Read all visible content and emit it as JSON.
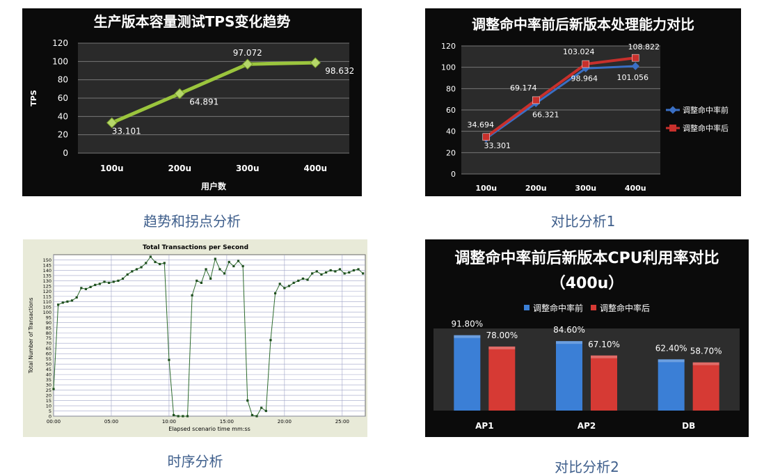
{
  "captions": {
    "c1": "趋势和拐点分析",
    "c2": "对比分析1",
    "c3": "时序分析",
    "c4": "对比分析2"
  },
  "chart_data": [
    {
      "type": "line",
      "title": "生产版本容量测试TPS变化趋势",
      "xlabel": "用户数",
      "ylabel": "TPS",
      "categories": [
        "100u",
        "200u",
        "300u",
        "400u"
      ],
      "series": [
        {
          "values": [
            33.101,
            64.891,
            97.072,
            98.632
          ]
        }
      ],
      "data_labels": [
        "33.101",
        "64.891",
        "97.072",
        "98.632"
      ],
      "ylim": [
        0,
        120
      ],
      "yticks": [
        "0",
        "20",
        "40",
        "60",
        "80",
        "100",
        "120"
      ],
      "grid": true,
      "colors": {
        "line": "#9bc53d",
        "background": "#0b0b0b"
      }
    },
    {
      "type": "line",
      "title": "调整命中率前后新版本处理能力对比",
      "categories": [
        "100u",
        "200u",
        "300u",
        "400u"
      ],
      "series": [
        {
          "name": "调整命中率前",
          "values": [
            33.301,
            66.321,
            98.964,
            101.056
          ],
          "labels": [
            "33.301",
            "66.321",
            "98.964",
            "101.056"
          ],
          "color": "#3a6fc4"
        },
        {
          "name": "调整命中率后",
          "values": [
            34.694,
            69.174,
            103.024,
            108.822
          ],
          "labels": [
            "34.694",
            "69.174",
            "103.024",
            "108.822"
          ],
          "color": "#c8302c"
        }
      ],
      "ylim": [
        0,
        120
      ],
      "yticks": [
        "0",
        "20",
        "40",
        "60",
        "80",
        "100",
        "120"
      ],
      "grid": true,
      "legend": "right"
    },
    {
      "type": "line",
      "title": "Total Transactions per Second",
      "xlabel": "Elapsed scenario time mm:ss",
      "ylabel": "Total Number of Transactions",
      "xticks": [
        "00:00",
        "05:00",
        "10:00",
        "15:00",
        "20:00",
        "25:00"
      ],
      "xtick_values": [
        0,
        5,
        10,
        15,
        20,
        25
      ],
      "xlim": [
        0,
        27
      ],
      "ylim": [
        0,
        155
      ],
      "yticks": [
        "0",
        "5",
        "10",
        "15",
        "20",
        "25",
        "30",
        "35",
        "40",
        "45",
        "50",
        "55",
        "60",
        "65",
        "70",
        "75",
        "80",
        "85",
        "90",
        "95",
        "100",
        "105",
        "110",
        "115",
        "120",
        "125",
        "130",
        "135",
        "140",
        "145",
        "150"
      ],
      "series": [
        {
          "x": [
            0,
            0.4,
            0.8,
            1.2,
            1.6,
            2.0,
            2.4,
            2.8,
            3.2,
            3.6,
            4.0,
            4.4,
            4.8,
            5.2,
            5.6,
            6.0,
            6.4,
            6.8,
            7.2,
            7.6,
            8.0,
            8.4,
            8.8,
            9.2,
            9.6,
            10.0,
            10.4,
            10.8,
            11.2,
            11.6,
            12.0,
            12.4,
            12.8,
            13.2,
            13.6,
            14.0,
            14.4,
            14.8,
            15.2,
            15.6,
            16.0,
            16.4,
            16.8,
            17.2,
            17.6,
            18.0,
            18.4,
            18.8,
            19.2,
            19.6,
            20.0,
            20.4,
            20.8,
            21.2,
            21.6,
            22.0,
            22.4,
            22.8,
            23.2,
            23.6,
            24.0,
            24.4,
            24.8,
            25.2,
            25.6,
            26.0,
            26.4,
            26.8
          ],
          "values": [
            26,
            107,
            109,
            110,
            111,
            114,
            123,
            122,
            124,
            126,
            127,
            129,
            128,
            129,
            130,
            132,
            136,
            139,
            141,
            143,
            147,
            153,
            148,
            146,
            147,
            54,
            1,
            0,
            0,
            0,
            116,
            130,
            128,
            141,
            132,
            151,
            141,
            137,
            148,
            144,
            149,
            144,
            15,
            1,
            0,
            8,
            5,
            73,
            118,
            127,
            123,
            125,
            128,
            130,
            132,
            131,
            137,
            139,
            136,
            138,
            140,
            139,
            141,
            137,
            138,
            140,
            141,
            137
          ],
          "color": "#2e6b2e"
        }
      ],
      "grid": true
    },
    {
      "type": "bar",
      "title": "调整命中率前后新版本CPU利用率对比（400u）",
      "categories": [
        "AP1",
        "AP2",
        "DB"
      ],
      "series": [
        {
          "name": "调整命中率前",
          "values": [
            91.8,
            84.6,
            62.4
          ],
          "labels": [
            "91.80%",
            "84.60%",
            "62.40%"
          ],
          "color": "#3b7fd6"
        },
        {
          "name": "调整命中率后",
          "values": [
            78.0,
            67.1,
            58.7
          ],
          "labels": [
            "78.00%",
            "67.10%",
            "58.70%"
          ],
          "color": "#d63a34"
        }
      ],
      "title_line1": "调整命中率前后新版本CPU利用率对比",
      "title_line2": "（400u）",
      "ylim": [
        0,
        100
      ],
      "legend": "top",
      "grid": false
    }
  ]
}
